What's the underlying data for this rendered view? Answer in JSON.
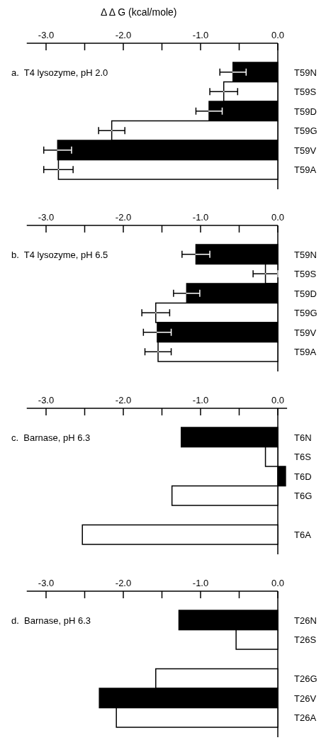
{
  "chart_data": [
    {
      "type": "bar",
      "orientation": "horizontal",
      "title": "a.  T4 lysozyme, pH 2.0",
      "xlabel": "Δ Δ G  (kcal/mole)",
      "categories": [
        "T59N",
        "T59S",
        "T59D",
        "T59G",
        "T59V",
        "T59A"
      ],
      "values": [
        -0.58,
        -0.7,
        -0.89,
        -2.15,
        -2.85,
        -2.84
      ],
      "errors": [
        0.17,
        0.18,
        0.17,
        0.17,
        0.18,
        0.19
      ],
      "colors": [
        "#000000",
        "#ffffff",
        "#000000",
        "#ffffff",
        "#000000",
        "#ffffff"
      ],
      "xlim": [
        -3.25,
        0
      ],
      "xticks": [
        {
          "value": -3,
          "label": "-3.0"
        },
        {
          "value": -2.5,
          "label": null
        },
        {
          "value": -2,
          "label": "-2.0"
        },
        {
          "value": -1.5,
          "label": null
        },
        {
          "value": -1,
          "label": "-1.0"
        },
        {
          "value": -0.5,
          "label": null
        },
        {
          "value": 0,
          "label": "0.0"
        }
      ]
    },
    {
      "type": "bar",
      "orientation": "horizontal",
      "title": "b.  T4 lysozyme, pH 6.5",
      "categories": [
        "T59N",
        "T59S",
        "T59D",
        "T59G",
        "T59V",
        "T59A"
      ],
      "values": [
        -1.06,
        -0.16,
        -1.18,
        -1.58,
        -1.56,
        -1.55
      ],
      "errors": [
        0.18,
        0.16,
        0.17,
        0.18,
        0.18,
        0.17
      ],
      "colors": [
        "#000000",
        "#ffffff",
        "#000000",
        "#ffffff",
        "#000000",
        "#ffffff"
      ],
      "xlim": [
        -3.25,
        0
      ],
      "xticks": [
        {
          "value": -3,
          "label": "-3.0"
        },
        {
          "value": -2.5,
          "label": null
        },
        {
          "value": -2,
          "label": "-2.0"
        },
        {
          "value": -1.5,
          "label": null
        },
        {
          "value": -1,
          "label": "-1.0"
        },
        {
          "value": -0.5,
          "label": null
        },
        {
          "value": 0,
          "label": "0.0"
        }
      ]
    },
    {
      "type": "bar",
      "orientation": "horizontal",
      "title": "c.  Barnase, pH 6.3",
      "categories": [
        "T6N",
        "T6S",
        "T6D",
        "T6G",
        null,
        "T6A"
      ],
      "values": [
        -1.25,
        -0.16,
        0.1,
        -1.37,
        null,
        -2.53
      ],
      "colors": [
        "#000000",
        "#ffffff",
        "#000000",
        "#ffffff",
        null,
        "#ffffff"
      ],
      "xlim": [
        -3.25,
        0.12
      ],
      "xticks": [
        {
          "value": -3,
          "label": "-3.0"
        },
        {
          "value": -2.5,
          "label": null
        },
        {
          "value": -2,
          "label": "-2.0"
        },
        {
          "value": -1.5,
          "label": null
        },
        {
          "value": -1,
          "label": "-1.0"
        },
        {
          "value": -0.5,
          "label": null
        },
        {
          "value": 0,
          "label": "0.0"
        }
      ]
    },
    {
      "type": "bar",
      "orientation": "horizontal",
      "title": "d.  Barnase, pH 6.3",
      "categories": [
        "T26N",
        "T26S",
        null,
        "T26G",
        "T26V",
        "T26A"
      ],
      "values": [
        -1.28,
        -0.54,
        null,
        -1.58,
        -2.31,
        -2.09
      ],
      "colors": [
        "#000000",
        "#ffffff",
        null,
        "#ffffff",
        "#000000",
        "#ffffff"
      ],
      "xlim": [
        -3.25,
        0
      ],
      "xticks": [
        {
          "value": -3,
          "label": "-3.0"
        },
        {
          "value": -2.5,
          "label": null
        },
        {
          "value": -2,
          "label": "-2.0"
        },
        {
          "value": -1.5,
          "label": null
        },
        {
          "value": -1,
          "label": "-1.0"
        },
        {
          "value": -0.5,
          "label": null
        },
        {
          "value": 0,
          "label": "0.0"
        }
      ]
    }
  ]
}
